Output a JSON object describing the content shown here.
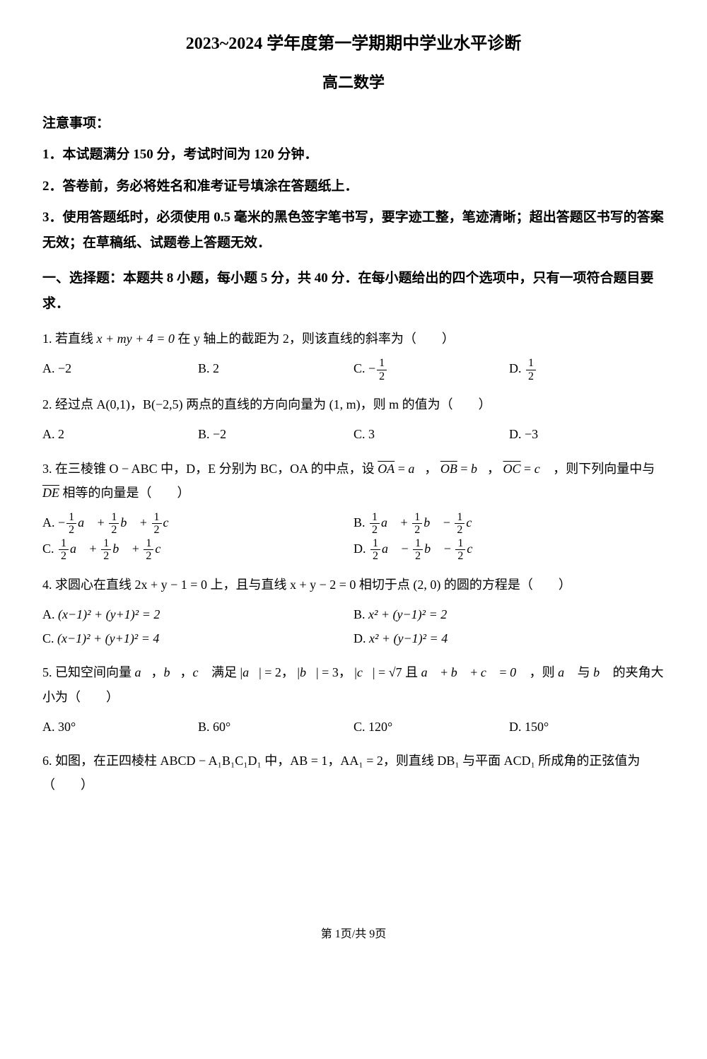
{
  "title": "2023~2024 学年度第一学期期中学业水平诊断",
  "subtitle": "高二数学",
  "noticeHead": "注意事项：",
  "notices": [
    "1．本试题满分 150 分，考试时间为 120 分钟．",
    "2．答卷前，务必将姓名和准考证号填涂在答题纸上．",
    "3．使用答题纸时，必须使用 0.5 毫米的黑色签字笔书写，要字迹工整，笔迹清晰；超出答题区书写的答案无效；在草稿纸、试题卷上答题无效．"
  ],
  "section1": "一、选择题：本题共 8 小题，每小题 5 分，共 40 分．在每小题给出的四个选项中，只有一项符合题目要求．",
  "q1": {
    "stem_a": "1. 若直线 ",
    "stem_expr": "x + my + 4 = 0",
    "stem_b": " 在 y 轴上的截距为 2，则该直线的斜率为（　　）",
    "A": "−2",
    "B": "2",
    "C_num": "1",
    "C_den": "2",
    "D_num": "1",
    "D_den": "2"
  },
  "q2": {
    "stem": "2. 经过点 A(0,1)，B(−2,5) 两点的直线的方向向量为 (1, m)，则 m 的值为（　　）",
    "A": "2",
    "B": "−2",
    "C": "3",
    "D": "−3"
  },
  "q3": {
    "stem_a": "3. 在三棱锥 O − ABC 中，D，E 分别为 BC，OA 的中点，设 ",
    "stem_b": "，则下列向量中与 ",
    "stem_c": " 相等的向量是（　　）",
    "OA": "OA",
    "OB": "OB",
    "OC": "OC",
    "DE": "DE",
    "a": "a",
    "b": "b",
    "c": "c",
    "half_num": "1",
    "half_den": "2"
  },
  "q4": {
    "stem": "4. 求圆心在直线 2x + y − 1 = 0 上，且与直线 x + y − 2 = 0 相切于点 (2, 0) 的圆的方程是（　　）",
    "A": "(x−1)² + (y+1)² = 2",
    "B": "x² + (y−1)² = 2",
    "C": "(x−1)² + (y+1)² = 4",
    "D": "x² + (y−1)² = 4"
  },
  "q5": {
    "stem_a": "5. 已知空间向量 ",
    "stem_b": " 满足 ",
    "stem_c": "，则 ",
    "stem_d": " 的夹角大小为（　　）",
    "a": "a",
    "b": "b",
    "c": "c",
    "mag_a": "2",
    "mag_b": "3",
    "mag_c": "√7",
    "sum": "0",
    "A": "30°",
    "B": "60°",
    "C": "120°",
    "D": "150°"
  },
  "q6": {
    "stem": "6. 如图，在正四棱柱 ABCD − A₁B₁C₁D₁ 中，AB = 1，AA₁ = 2，则直线 DB₁ 与平面 ACD₁ 所成角的正弦值为（　　）"
  },
  "footer": "第 1页/共 9页"
}
